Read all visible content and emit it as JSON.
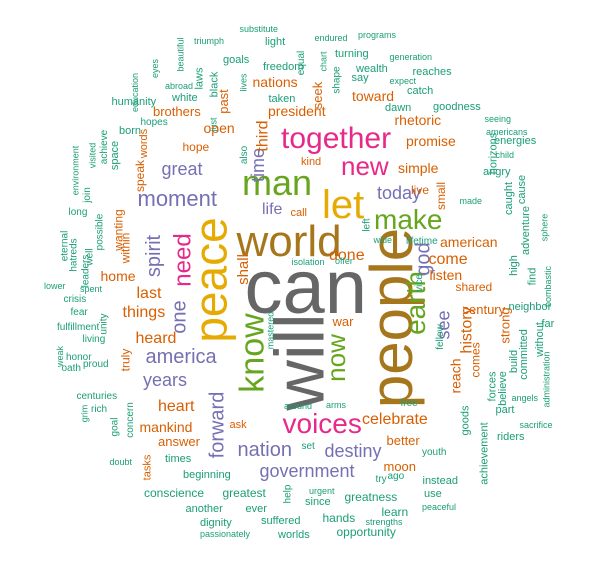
{
  "colors": {
    "grey": "#666666",
    "gold": "#a6761d",
    "pink": "#e7298a",
    "green": "#66a61e",
    "purple": "#7570b3",
    "orange": "#d95f02",
    "teal": "#1b9e77",
    "yellow": "#e6ab02"
  },
  "words": [
    {
      "t": "can",
      "c": "grey",
      "w": 100
    },
    {
      "t": "will",
      "c": "grey",
      "w": 95
    },
    {
      "t": "people",
      "c": "gold",
      "w": 90
    },
    {
      "t": "peace",
      "c": "yellow",
      "w": 85
    },
    {
      "t": "world",
      "c": "gold",
      "w": 80
    },
    {
      "t": "let",
      "c": "yellow",
      "w": 70
    },
    {
      "t": "man",
      "c": "green",
      "w": 70
    },
    {
      "t": "know",
      "c": "green",
      "w": 65
    },
    {
      "t": "voices",
      "c": "pink",
      "w": 60
    },
    {
      "t": "earth",
      "c": "green",
      "w": 60
    },
    {
      "t": "together",
      "c": "pink",
      "w": 58
    },
    {
      "t": "make",
      "c": "green",
      "w": 58
    },
    {
      "t": "new",
      "c": "pink",
      "w": 55
    },
    {
      "t": "now",
      "c": "green",
      "w": 55
    },
    {
      "t": "need",
      "c": "pink",
      "w": 48
    },
    {
      "t": "america",
      "c": "purple",
      "w": 45
    },
    {
      "t": "moment",
      "c": "purple",
      "w": 45
    },
    {
      "t": "forward",
      "c": "purple",
      "w": 45
    },
    {
      "t": "spirit",
      "c": "purple",
      "w": 45
    },
    {
      "t": "one",
      "c": "purple",
      "w": 42
    },
    {
      "t": "nation",
      "c": "purple",
      "w": 42
    },
    {
      "t": "destiny",
      "c": "purple",
      "w": 40
    },
    {
      "t": "government",
      "c": "purple",
      "w": 40
    },
    {
      "t": "god",
      "c": "purple",
      "w": 38
    },
    {
      "t": "great",
      "c": "purple",
      "w": 38
    },
    {
      "t": "see",
      "c": "purple",
      "w": 38
    },
    {
      "t": "today",
      "c": "purple",
      "w": 35
    },
    {
      "t": "years",
      "c": "purple",
      "w": 35
    },
    {
      "t": "life",
      "c": "purple",
      "w": 32
    },
    {
      "t": "time",
      "c": "purple",
      "w": 32
    },
    {
      "t": "history",
      "c": "orange",
      "w": 32
    },
    {
      "t": "heart",
      "c": "orange",
      "w": 32
    },
    {
      "t": "things",
      "c": "orange",
      "w": 32
    },
    {
      "t": "heard",
      "c": "orange",
      "w": 30
    },
    {
      "t": "celebrate",
      "c": "orange",
      "w": 30
    },
    {
      "t": "come",
      "c": "orange",
      "w": 30
    },
    {
      "t": "done",
      "c": "orange",
      "w": 30
    },
    {
      "t": "third",
      "c": "orange",
      "w": 30
    },
    {
      "t": "last",
      "c": "orange",
      "w": 30
    },
    {
      "t": "shall",
      "c": "orange",
      "w": 28
    },
    {
      "t": "american",
      "c": "orange",
      "w": 28
    },
    {
      "t": "reach",
      "c": "orange",
      "w": 28
    },
    {
      "t": "simple",
      "c": "orange",
      "w": 28
    },
    {
      "t": "open",
      "c": "orange",
      "w": 28
    },
    {
      "t": "president",
      "c": "orange",
      "w": 26
    },
    {
      "t": "rhetoric",
      "c": "orange",
      "w": 26
    },
    {
      "t": "nations",
      "c": "orange",
      "w": 26
    },
    {
      "t": "mankind",
      "c": "orange",
      "w": 26
    },
    {
      "t": "home",
      "c": "orange",
      "w": 25
    },
    {
      "t": "toward",
      "c": "orange",
      "w": 25
    },
    {
      "t": "promise",
      "c": "orange",
      "w": 25
    },
    {
      "t": "listen",
      "c": "orange",
      "w": 25
    },
    {
      "t": "war",
      "c": "orange",
      "w": 24
    },
    {
      "t": "seek",
      "c": "orange",
      "w": 24
    },
    {
      "t": "better",
      "c": "orange",
      "w": 24
    },
    {
      "t": "moon",
      "c": "orange",
      "w": 24
    },
    {
      "t": "century",
      "c": "orange",
      "w": 24
    },
    {
      "t": "brothers",
      "c": "orange",
      "w": 24
    },
    {
      "t": "past",
      "c": "orange",
      "w": 24
    },
    {
      "t": "strong",
      "c": "orange",
      "w": 24
    },
    {
      "t": "answer",
      "c": "orange",
      "w": 24
    },
    {
      "t": "shared",
      "c": "orange",
      "w": 22
    },
    {
      "t": "small",
      "c": "orange",
      "w": 22
    },
    {
      "t": "comes",
      "c": "orange",
      "w": 22
    },
    {
      "t": "live",
      "c": "orange",
      "w": 22
    },
    {
      "t": "hope",
      "c": "orange",
      "w": 22
    },
    {
      "t": "within",
      "c": "orange",
      "w": 22
    },
    {
      "t": "truly",
      "c": "orange",
      "w": 22
    },
    {
      "t": "speak",
      "c": "orange",
      "w": 22
    },
    {
      "t": "wanting",
      "c": "orange",
      "w": 22
    },
    {
      "t": "words",
      "c": "orange",
      "w": 20
    },
    {
      "t": "tasks",
      "c": "orange",
      "w": 20
    },
    {
      "t": "ask",
      "c": "orange",
      "w": 20
    },
    {
      "t": "call",
      "c": "orange",
      "w": 20
    },
    {
      "t": "kind",
      "c": "orange",
      "w": 20
    },
    {
      "t": "conscience",
      "c": "teal",
      "w": 20
    },
    {
      "t": "greatest",
      "c": "teal",
      "w": 20
    },
    {
      "t": "greatness",
      "c": "teal",
      "w": 20
    },
    {
      "t": "opportunity",
      "c": "teal",
      "w": 20
    },
    {
      "t": "hands",
      "c": "teal",
      "w": 20
    },
    {
      "t": "learn",
      "c": "teal",
      "w": 20
    },
    {
      "t": "use",
      "c": "teal",
      "w": 18
    },
    {
      "t": "instead",
      "c": "teal",
      "w": 18
    },
    {
      "t": "since",
      "c": "teal",
      "w": 18
    },
    {
      "t": "suffered",
      "c": "teal",
      "w": 18
    },
    {
      "t": "dignity",
      "c": "teal",
      "w": 18
    },
    {
      "t": "another",
      "c": "teal",
      "w": 18
    },
    {
      "t": "ever",
      "c": "teal",
      "w": 18
    },
    {
      "t": "worlds",
      "c": "teal",
      "w": 18
    },
    {
      "t": "beginning",
      "c": "teal",
      "w": 18
    },
    {
      "t": "times",
      "c": "teal",
      "w": 18
    },
    {
      "t": "goods",
      "c": "teal",
      "w": 18
    },
    {
      "t": "achievement",
      "c": "teal",
      "w": 18
    },
    {
      "t": "riders",
      "c": "teal",
      "w": 18
    },
    {
      "t": "forces",
      "c": "teal",
      "w": 18
    },
    {
      "t": "believe",
      "c": "teal",
      "w": 18
    },
    {
      "t": "build",
      "c": "teal",
      "w": 18
    },
    {
      "t": "committed",
      "c": "teal",
      "w": 18
    },
    {
      "t": "without",
      "c": "teal",
      "w": 18
    },
    {
      "t": "neighbor",
      "c": "teal",
      "w": 18
    },
    {
      "t": "far",
      "c": "teal",
      "w": 18
    },
    {
      "t": "adventure",
      "c": "teal",
      "w": 18
    },
    {
      "t": "find",
      "c": "teal",
      "w": 18
    },
    {
      "t": "high",
      "c": "teal",
      "w": 18
    },
    {
      "t": "part",
      "c": "teal",
      "w": 18
    },
    {
      "t": "caught",
      "c": "teal",
      "w": 18
    },
    {
      "t": "cause",
      "c": "teal",
      "w": 18
    },
    {
      "t": "angry",
      "c": "teal",
      "w": 18
    },
    {
      "t": "energies",
      "c": "teal",
      "w": 18
    },
    {
      "t": "horizons",
      "c": "teal",
      "w": 18
    },
    {
      "t": "goodness",
      "c": "teal",
      "w": 18
    },
    {
      "t": "dawn",
      "c": "teal",
      "w": 18
    },
    {
      "t": "catch",
      "c": "teal",
      "w": 18
    },
    {
      "t": "reaches",
      "c": "teal",
      "w": 18
    },
    {
      "t": "wealth",
      "c": "teal",
      "w": 18
    },
    {
      "t": "say",
      "c": "teal",
      "w": 18
    },
    {
      "t": "turning",
      "c": "teal",
      "w": 18
    },
    {
      "t": "taken",
      "c": "teal",
      "w": 18
    },
    {
      "t": "freedom",
      "c": "teal",
      "w": 18
    },
    {
      "t": "light",
      "c": "teal",
      "w": 18
    },
    {
      "t": "goals",
      "c": "teal",
      "w": 18
    },
    {
      "t": "white",
      "c": "teal",
      "w": 18
    },
    {
      "t": "laws",
      "c": "teal",
      "w": 18
    },
    {
      "t": "black",
      "c": "teal",
      "w": 18
    },
    {
      "t": "humanity",
      "c": "teal",
      "w": 18
    },
    {
      "t": "born",
      "c": "teal",
      "w": 18
    },
    {
      "t": "space",
      "c": "teal",
      "w": 18
    },
    {
      "t": "achieve",
      "c": "teal",
      "w": 16
    },
    {
      "t": "join",
      "c": "teal",
      "w": 16
    },
    {
      "t": "possible",
      "c": "teal",
      "w": 16
    },
    {
      "t": "long",
      "c": "teal",
      "w": 16
    },
    {
      "t": "well",
      "c": "teal",
      "w": 16
    },
    {
      "t": "leaders",
      "c": "teal",
      "w": 16
    },
    {
      "t": "eternal",
      "c": "teal",
      "w": 16
    },
    {
      "t": "hatreds",
      "c": "teal",
      "w": 16
    },
    {
      "t": "crisis",
      "c": "teal",
      "w": 16
    },
    {
      "t": "fear",
      "c": "teal",
      "w": 16
    },
    {
      "t": "fulfillment",
      "c": "teal",
      "w": 16
    },
    {
      "t": "living",
      "c": "teal",
      "w": 16
    },
    {
      "t": "honor",
      "c": "teal",
      "w": 16
    },
    {
      "t": "unity",
      "c": "teal",
      "w": 16
    },
    {
      "t": "proud",
      "c": "teal",
      "w": 16
    },
    {
      "t": "oath",
      "c": "teal",
      "w": 16
    },
    {
      "t": "centuries",
      "c": "teal",
      "w": 16
    },
    {
      "t": "rich",
      "c": "teal",
      "w": 16
    },
    {
      "t": "goal",
      "c": "teal",
      "w": 16
    },
    {
      "t": "concern",
      "c": "teal",
      "w": 16
    },
    {
      "t": "fellow",
      "c": "teal",
      "w": 16
    },
    {
      "t": "youth",
      "c": "teal",
      "w": 16
    },
    {
      "t": "free",
      "c": "teal",
      "w": 16
    },
    {
      "t": "lifetime",
      "c": "teal",
      "w": 16
    },
    {
      "t": "vice",
      "c": "teal",
      "w": 16
    },
    {
      "t": "left",
      "c": "teal",
      "w": 16
    },
    {
      "t": "try",
      "c": "teal",
      "w": 16
    },
    {
      "t": "ago",
      "c": "teal",
      "w": 16
    },
    {
      "t": "help",
      "c": "teal",
      "w": 16
    },
    {
      "t": "set",
      "c": "teal",
      "w": 16
    },
    {
      "t": "also",
      "c": "teal",
      "w": 16
    },
    {
      "t": "equal",
      "c": "teal",
      "w": 14
    },
    {
      "t": "shape",
      "c": "teal",
      "w": 14
    },
    {
      "t": "chart",
      "c": "teal",
      "w": 14
    },
    {
      "t": "lives",
      "c": "teal",
      "w": 14
    },
    {
      "t": "hopes",
      "c": "teal",
      "w": 14
    },
    {
      "t": "just",
      "c": "teal",
      "w": 12
    },
    {
      "t": "education",
      "c": "teal",
      "w": 12
    },
    {
      "t": "eyes",
      "c": "teal",
      "w": 12
    },
    {
      "t": "beautiful",
      "c": "teal",
      "w": 12
    },
    {
      "t": "abroad",
      "c": "teal",
      "w": 12
    },
    {
      "t": "triumph",
      "c": "teal",
      "w": 12
    },
    {
      "t": "substitute",
      "c": "teal",
      "w": 12
    },
    {
      "t": "endured",
      "c": "teal",
      "w": 12
    },
    {
      "t": "programs",
      "c": "teal",
      "w": 12
    },
    {
      "t": "generation",
      "c": "teal",
      "w": 12
    },
    {
      "t": "expect",
      "c": "teal",
      "w": 12
    },
    {
      "t": "seeing",
      "c": "teal",
      "w": 12
    },
    {
      "t": "americans",
      "c": "teal",
      "w": 12
    },
    {
      "t": "child",
      "c": "teal",
      "w": 12
    },
    {
      "t": "made",
      "c": "teal",
      "w": 12
    },
    {
      "t": "sphere",
      "c": "teal",
      "w": 12
    },
    {
      "t": "bombastic",
      "c": "teal",
      "w": 12
    },
    {
      "t": "angels",
      "c": "teal",
      "w": 12
    },
    {
      "t": "administration",
      "c": "teal",
      "w": 12
    },
    {
      "t": "sacrifice",
      "c": "teal",
      "w": 12
    },
    {
      "t": "peaceful",
      "c": "teal",
      "w": 12
    },
    {
      "t": "strengths",
      "c": "teal",
      "w": 12
    },
    {
      "t": "urgent",
      "c": "teal",
      "w": 12
    },
    {
      "t": "passionately",
      "c": "teal",
      "w": 12
    },
    {
      "t": "doubt",
      "c": "teal",
      "w": 12
    },
    {
      "t": "grim",
      "c": "teal",
      "w": 12
    },
    {
      "t": "weak",
      "c": "teal",
      "w": 12
    },
    {
      "t": "lower",
      "c": "teal",
      "w": 12
    },
    {
      "t": "spent",
      "c": "teal",
      "w": 12
    },
    {
      "t": "environment",
      "c": "teal",
      "w": 12
    },
    {
      "t": "visited",
      "c": "teal",
      "w": 12
    },
    {
      "t": "around",
      "c": "teal",
      "w": 12
    },
    {
      "t": "arms",
      "c": "teal",
      "w": 12
    },
    {
      "t": "mastered",
      "c": "teal",
      "w": 12
    },
    {
      "t": "isolation",
      "c": "teal",
      "w": 12
    },
    {
      "t": "offer",
      "c": "teal",
      "w": 12
    },
    {
      "t": "wide",
      "c": "teal",
      "w": 12
    }
  ]
}
